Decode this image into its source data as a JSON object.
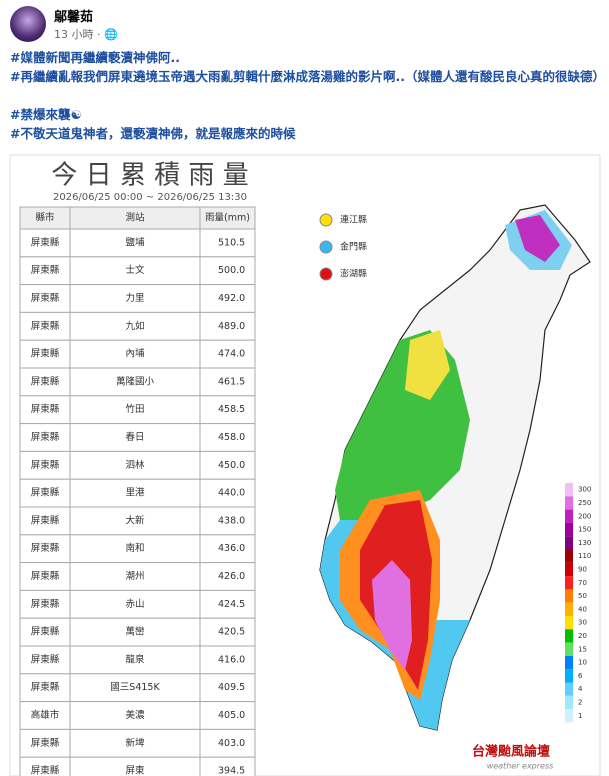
{
  "post": {
    "author": "鄔馨茹",
    "time": "13 小時",
    "lines": [
      "#媒體新聞再繼續褻瀆神佛阿..",
      "#再繼續亂報我們屏東遶境玉帝遇大雨亂剪輯什麼淋成落湯雞的影片啊..（媒體人還有酸民良心真的很缺德）",
      "#禁爆來襲☯",
      "#不敬天道鬼神者，還褻瀆神佛，就是報應來的時候"
    ]
  },
  "image": {
    "title": "今 日 累 積 雨 量",
    "date_range": "2026/06/25 00:00 ~ 2026/06/25 13:30",
    "table": {
      "headers": [
        "縣市",
        "測站",
        "雨量(mm)"
      ],
      "rows": [
        [
          "屏東縣",
          "鹽埔",
          "510.5"
        ],
        [
          "屏東縣",
          "士文",
          "500.0"
        ],
        [
          "屏東縣",
          "力里",
          "492.0"
        ],
        [
          "屏東縣",
          "九如",
          "489.0"
        ],
        [
          "屏東縣",
          "內埔",
          "474.0"
        ],
        [
          "屏東縣",
          "萬隆國小",
          "461.5"
        ],
        [
          "屏東縣",
          "竹田",
          "458.5"
        ],
        [
          "屏東縣",
          "春日",
          "458.0"
        ],
        [
          "屏東縣",
          "泗林",
          "450.0"
        ],
        [
          "屏東縣",
          "里港",
          "440.0"
        ],
        [
          "屏東縣",
          "大新",
          "438.0"
        ],
        [
          "屏東縣",
          "南和",
          "436.0"
        ],
        [
          "屏東縣",
          "潮州",
          "426.0"
        ],
        [
          "屏東縣",
          "赤山",
          "424.5"
        ],
        [
          "屏東縣",
          "萬巒",
          "420.5"
        ],
        [
          "屏東縣",
          "龍泉",
          "416.0"
        ],
        [
          "屏東縣",
          "國三S415K",
          "409.5"
        ],
        [
          "高雄市",
          "美濃",
          "405.0"
        ],
        [
          "屏東縣",
          "新埤",
          "403.0"
        ],
        [
          "屏東縣",
          "屏東",
          "394.5"
        ]
      ]
    },
    "legend": [
      {
        "label": "連江縣",
        "color": "#ffe000"
      },
      {
        "label": "金門縣",
        "color": "#33bbee"
      },
      {
        "label": "澎湖縣",
        "color": "#e01010"
      }
    ],
    "scale": {
      "labels": [
        300,
        250,
        200,
        150,
        130,
        110,
        90,
        70,
        50,
        40,
        30,
        20,
        15,
        10,
        6,
        4,
        2,
        1
      ],
      "colors": [
        "#f0c0f0",
        "#e070e0",
        "#c020c0",
        "#a000a0",
        "#800080",
        "#a00000",
        "#d00000",
        "#ff2020",
        "#ff8000",
        "#ffb000",
        "#ffe000",
        "#00c000",
        "#60e060",
        "#0080ff",
        "#00b0ff",
        "#60d0ff",
        "#a0e8ff",
        "#d0f0ff"
      ]
    },
    "logo": "台灣颱風論壇",
    "logo_sub": "weather express"
  }
}
